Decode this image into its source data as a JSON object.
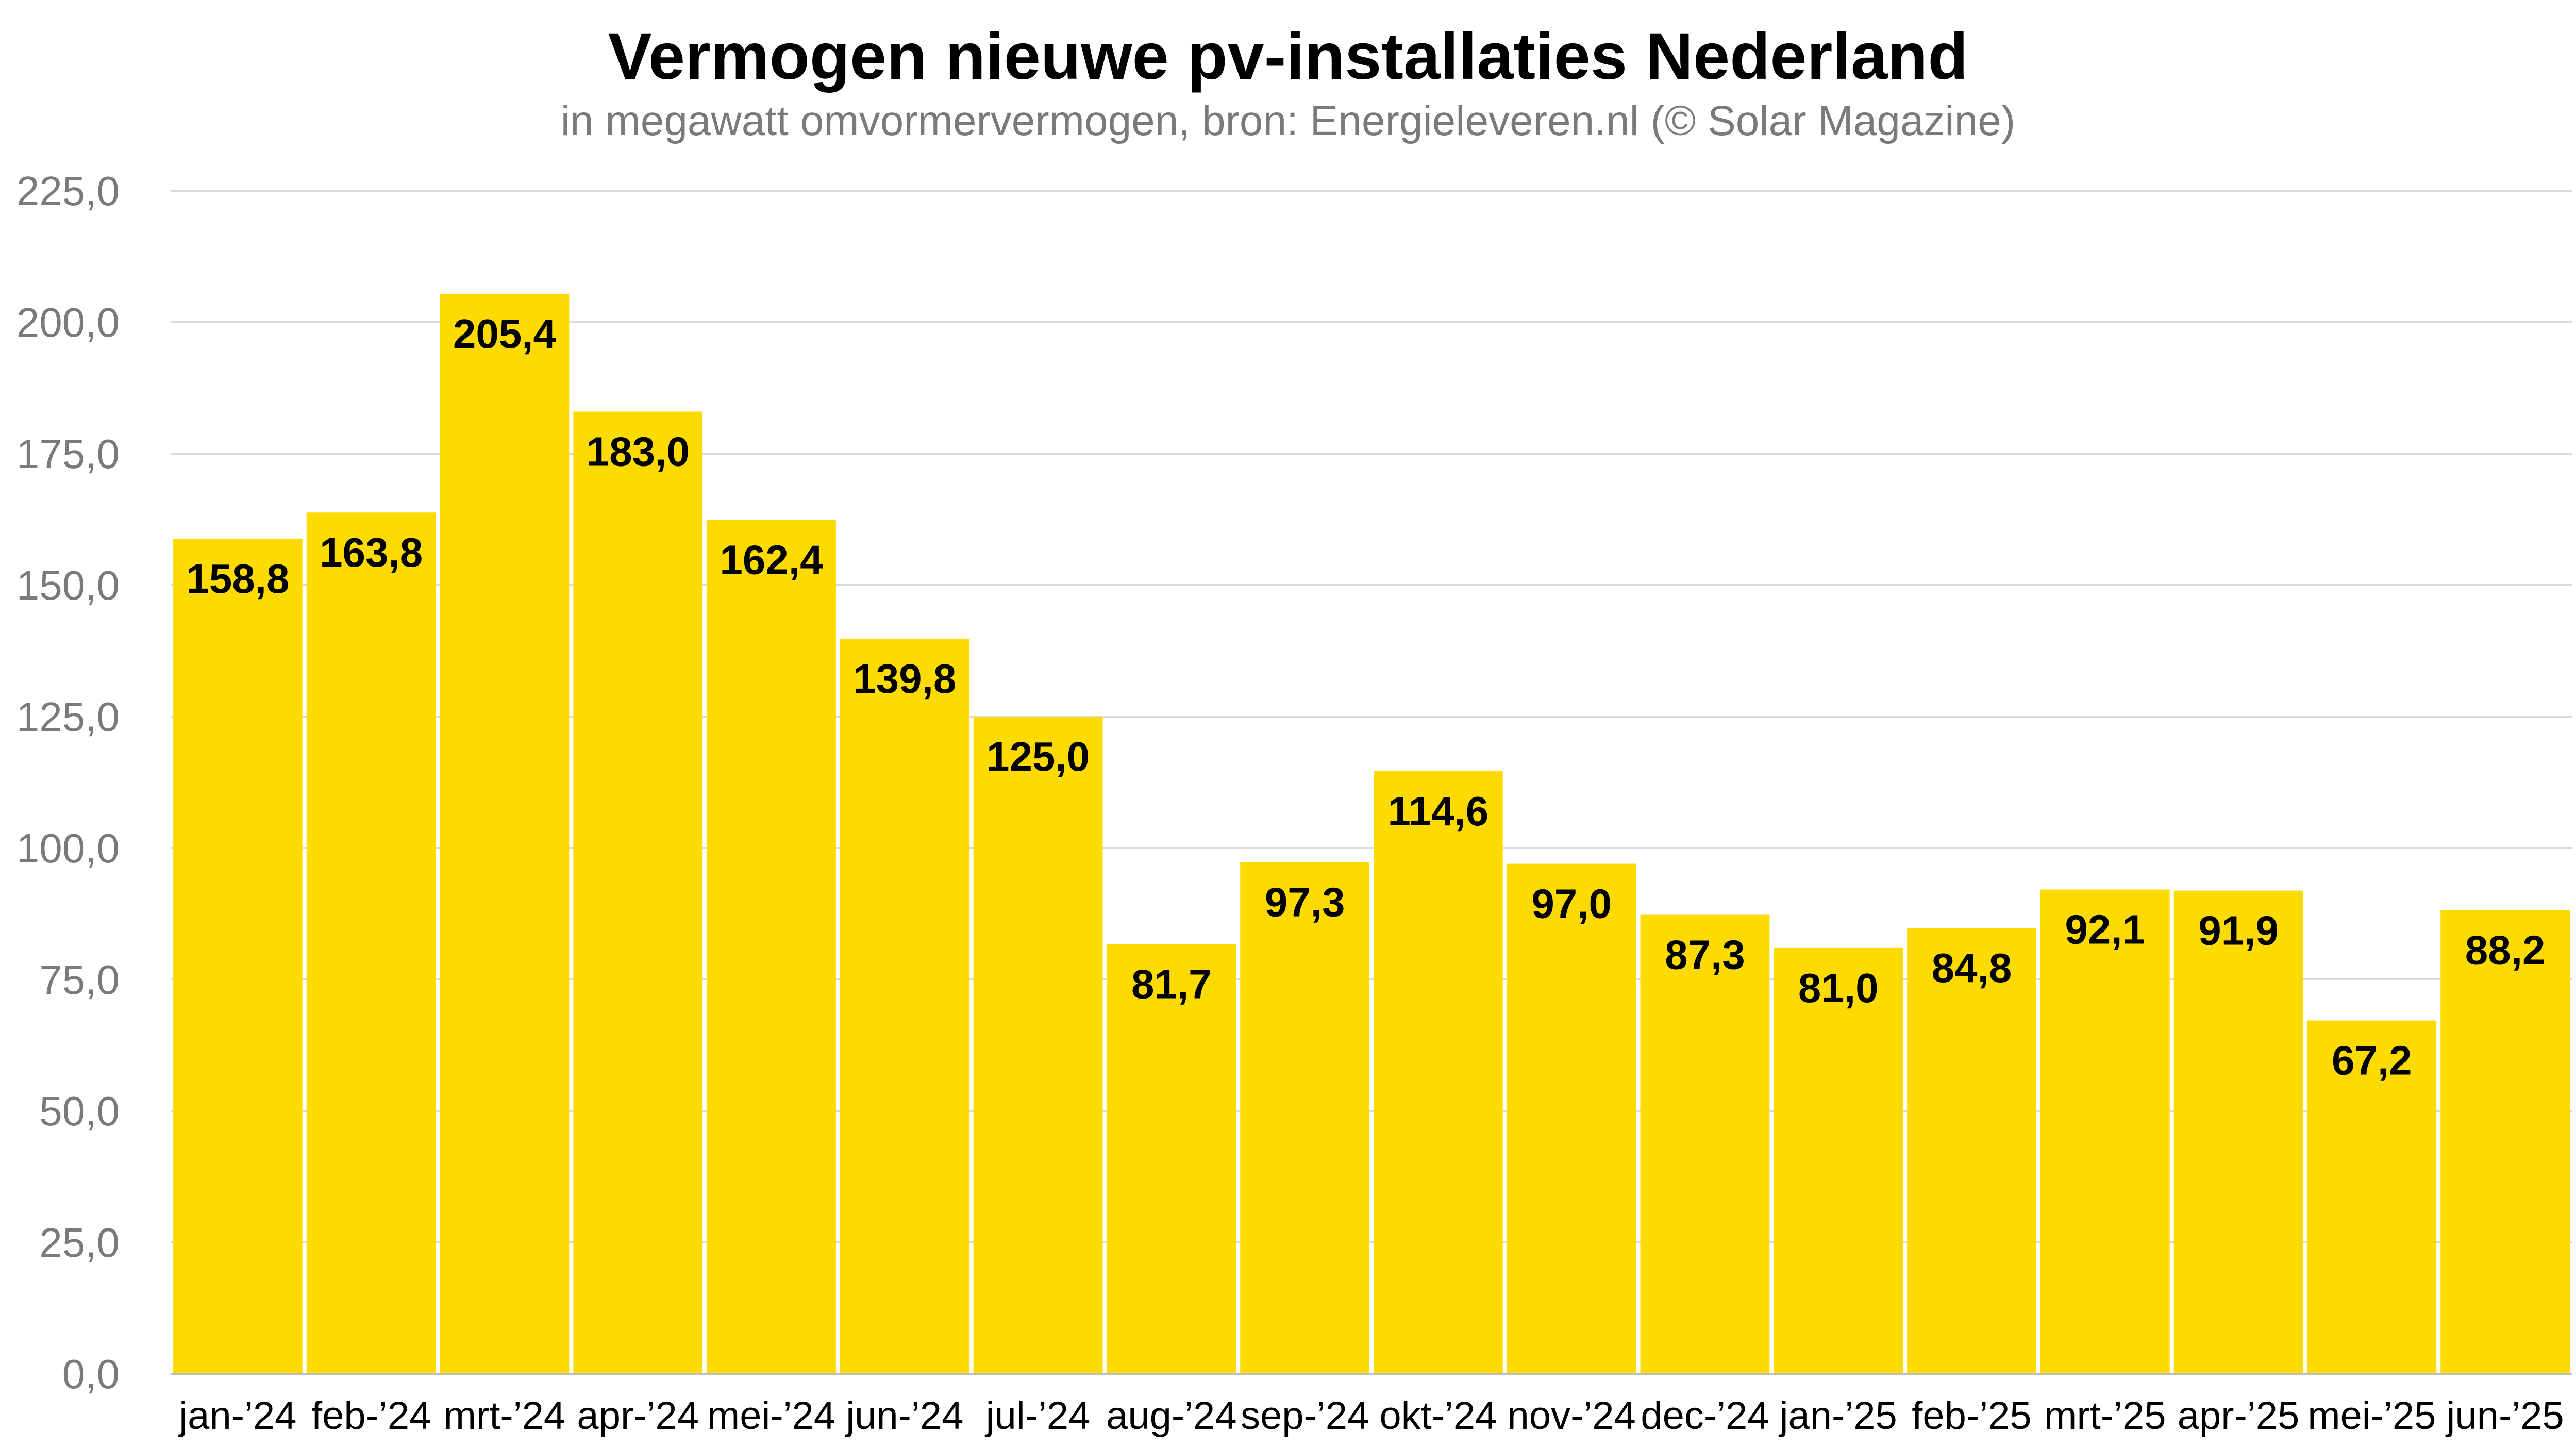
{
  "chart_data": {
    "type": "bar",
    "title": "Vermogen nieuwe pv-installaties Nederland",
    "subtitle": "in megawatt omvormervermogen, bron: Energieleveren.nl (© Solar Magazine)",
    "xlabel": "",
    "ylabel": "",
    "categories": [
      "jan-’24",
      "feb-’24",
      "mrt-’24",
      "apr-’24",
      "mei-’24",
      "jun-’24",
      "jul-’24",
      "aug-’24",
      "sep-’24",
      "okt-’24",
      "nov-’24",
      "dec-’24",
      "jan-’25",
      "feb-’25",
      "mrt-’25",
      "apr-’25",
      "mei-’25",
      "jun-’25"
    ],
    "values": [
      158.8,
      163.8,
      205.4,
      183.0,
      162.4,
      139.8,
      125.0,
      81.7,
      97.3,
      114.6,
      97.0,
      87.3,
      81.0,
      84.8,
      92.1,
      91.9,
      67.2,
      88.2
    ],
    "data_labels": [
      "158,8",
      "163,8",
      "205,4",
      "183,0",
      "162,4",
      "139,8",
      "125,0",
      "81,7",
      "97,3",
      "114,6",
      "97,0",
      "87,3",
      "81,0",
      "84,8",
      "92,1",
      "91,9",
      "67,2",
      "88,2"
    ],
    "ylim": [
      0,
      225
    ],
    "y_ticks": [
      0,
      25,
      50,
      75,
      100,
      125,
      150,
      175,
      200,
      225
    ],
    "y_tick_labels": [
      "0,0",
      "25,0",
      "50,0",
      "75,0",
      "100,0",
      "125,0",
      "150,0",
      "175,0",
      "200,0",
      "225,0"
    ],
    "grid": true,
    "legend": "none",
    "colors": {
      "bar": "#FDDB00",
      "grid": "#d9d9d9",
      "axis": "#bfbfbf"
    }
  }
}
